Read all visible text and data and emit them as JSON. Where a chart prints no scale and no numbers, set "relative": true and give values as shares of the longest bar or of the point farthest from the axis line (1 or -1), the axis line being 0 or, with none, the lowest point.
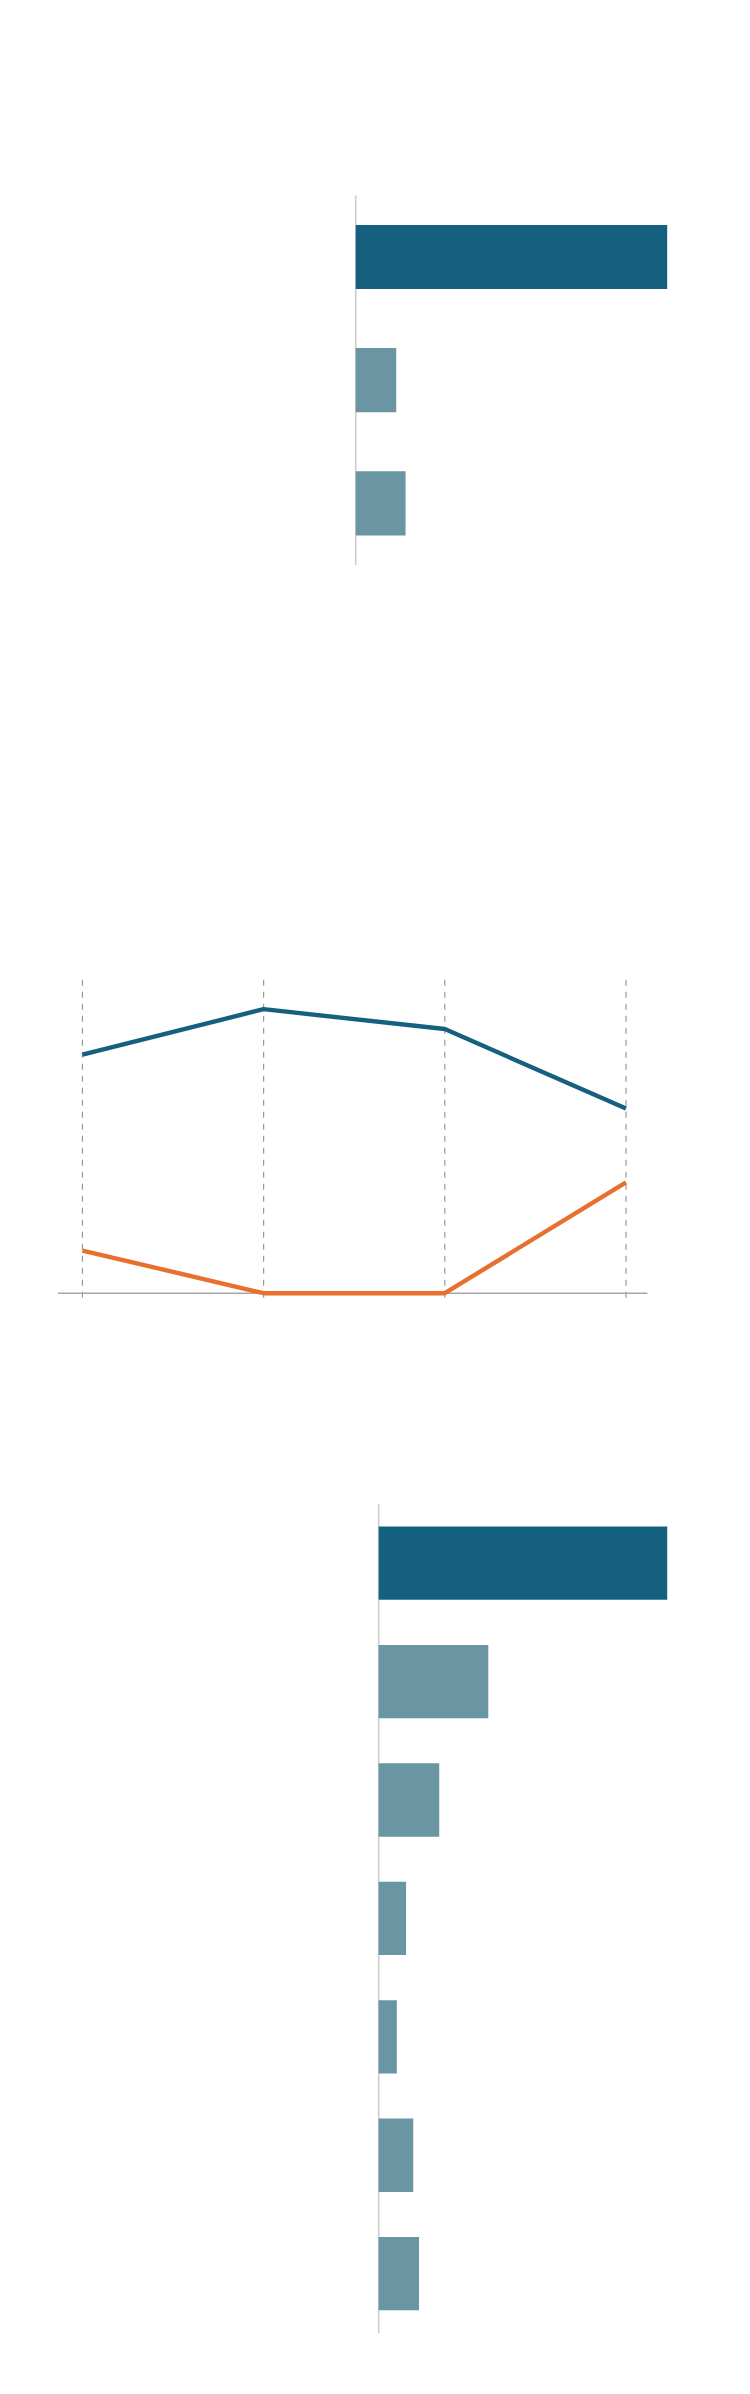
{
  "chart_data": [
    {
      "type": "bar",
      "orientation": "horizontal",
      "relative": true,
      "categories": [
        null,
        null,
        null
      ],
      "values": [
        1,
        0.13,
        0.16
      ],
      "colors": [
        "#15607f",
        "#6a95a3",
        "#6a95a3"
      ]
    },
    {
      "type": "line",
      "relative": true,
      "categories": [
        null,
        null,
        null,
        null
      ],
      "grid": "x",
      "marker": "none",
      "line_style": "solid",
      "series": [
        {
          "color": "#15607f",
          "values": [
            0.84,
            1,
            0.93,
            0.65
          ]
        },
        {
          "color": "#e8702f",
          "values": [
            0.15,
            0,
            0,
            0.39
          ]
        }
      ]
    },
    {
      "type": "bar",
      "orientation": "horizontal",
      "relative": true,
      "categories": [
        null,
        null,
        null,
        null,
        null,
        null,
        null
      ],
      "values": [
        1,
        0.38,
        0.21,
        0.095,
        0.063,
        0.12,
        0.14
      ],
      "colors": [
        "#15607f",
        "#6a95a3",
        "#6a95a3",
        "#6a95a3",
        "#6a95a3",
        "#6a95a3",
        "#6a95a3"
      ]
    }
  ]
}
